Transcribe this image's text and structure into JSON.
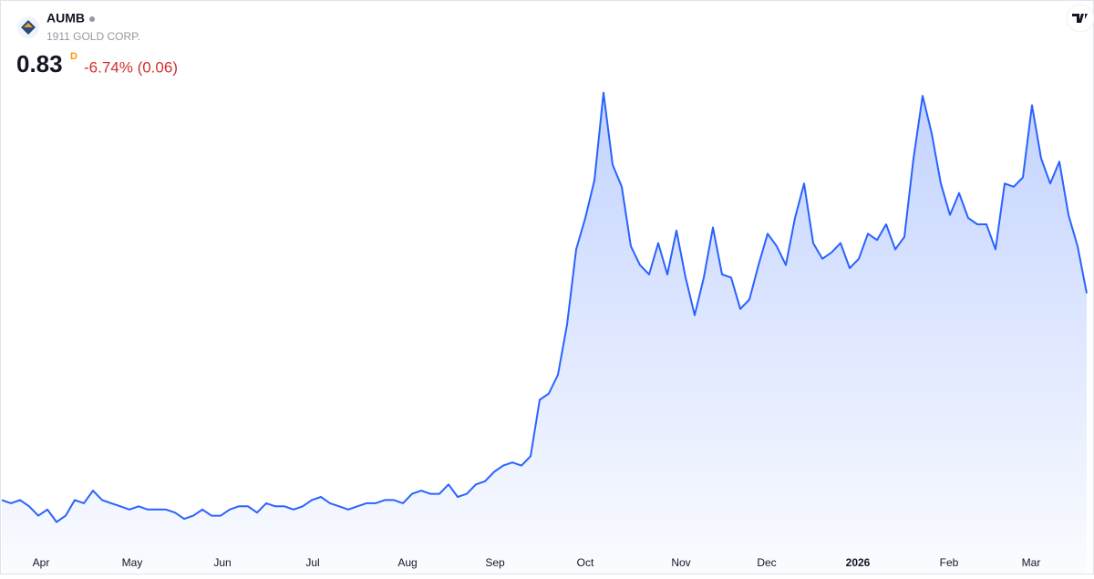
{
  "header": {
    "symbol": "AUMB",
    "company": "1911 GOLD CORP.",
    "price": "0.83",
    "interval": "D",
    "change": "-6.74% (0.06)"
  },
  "chart_data": {
    "type": "area",
    "color": "#2962ff",
    "values": [
      0.17,
      0.16,
      0.17,
      0.15,
      0.12,
      0.14,
      0.1,
      0.12,
      0.17,
      0.16,
      0.2,
      0.17,
      0.16,
      0.15,
      0.14,
      0.15,
      0.14,
      0.14,
      0.14,
      0.13,
      0.11,
      0.12,
      0.14,
      0.12,
      0.12,
      0.14,
      0.15,
      0.15,
      0.13,
      0.16,
      0.15,
      0.15,
      0.14,
      0.15,
      0.17,
      0.18,
      0.16,
      0.15,
      0.14,
      0.15,
      0.16,
      0.16,
      0.17,
      0.17,
      0.16,
      0.19,
      0.2,
      0.19,
      0.19,
      0.22,
      0.18,
      0.19,
      0.22,
      0.23,
      0.26,
      0.28,
      0.29,
      0.28,
      0.31,
      0.49,
      0.51,
      0.57,
      0.73,
      0.97,
      1.07,
      1.19,
      1.47,
      1.24,
      1.17,
      0.98,
      0.92,
      0.89,
      0.99,
      0.89,
      1.03,
      0.88,
      0.76,
      0.88,
      1.04,
      0.89,
      0.88,
      0.78,
      0.81,
      0.92,
      1.02,
      0.98,
      0.92,
      1.07,
      1.18,
      0.99,
      0.94,
      0.96,
      0.99,
      0.91,
      0.94,
      1.02,
      1.0,
      1.05,
      0.97,
      1.01,
      1.26,
      1.46,
      1.34,
      1.18,
      1.08,
      1.15,
      1.07,
      1.05,
      1.05,
      0.97,
      1.18,
      1.17,
      1.2,
      1.43,
      1.26,
      1.18,
      1.25,
      1.08,
      0.98,
      0.83
    ],
    "ylim": [
      0.02,
      1.6
    ],
    "xticks": [
      {
        "value": 4.3,
        "label": "Apr"
      },
      {
        "value": 14.3,
        "label": "May"
      },
      {
        "value": 24.2,
        "label": "Jun"
      },
      {
        "value": 34.1,
        "label": "Jul"
      },
      {
        "value": 44.5,
        "label": "Aug"
      },
      {
        "value": 54.1,
        "label": "Sep"
      },
      {
        "value": 64,
        "label": "Oct"
      },
      {
        "value": 74.5,
        "label": "Nov"
      },
      {
        "value": 83.9,
        "label": "Dec"
      },
      {
        "value": 93.9,
        "label": "2026"
      },
      {
        "value": 103.9,
        "label": "Feb"
      },
      {
        "value": 112.9,
        "label": "Mar"
      }
    ]
  }
}
